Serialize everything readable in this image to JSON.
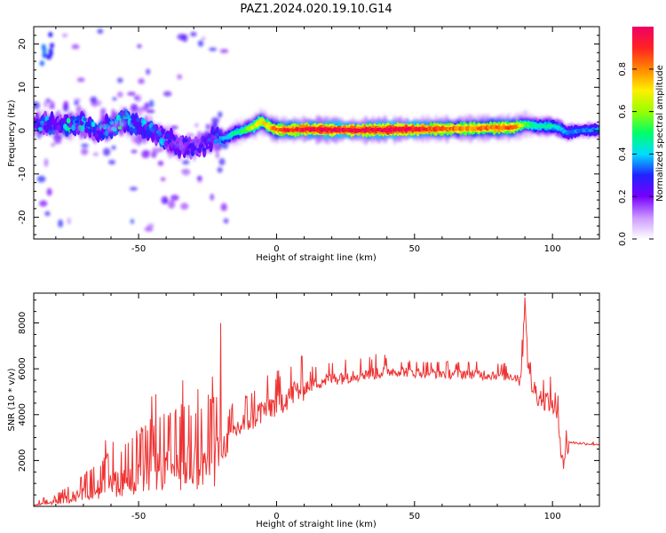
{
  "title": "PAZ1.2024.020.19.10.G14",
  "chart_data": [
    {
      "type": "heatmap",
      "xlabel": "Height of straight line (km)",
      "ylabel": "Frequency (Hz)",
      "xlim": [
        -88,
        117
      ],
      "ylim": [
        -25,
        24
      ],
      "xticks": [
        -50,
        0,
        50,
        100
      ],
      "yticks": [
        -20,
        -10,
        0,
        10,
        20
      ],
      "grid": false,
      "colorbar": {
        "label": "Normalized spectral amplitude",
        "range": [
          0,
          1
        ],
        "ticks": [
          0.0,
          0.2,
          0.4,
          0.6,
          0.8
        ],
        "colors": [
          "#ffffff",
          "#cc99ff",
          "#7700ff",
          "#2222ff",
          "#00ddff",
          "#00ff66",
          "#99ff00",
          "#ffee00",
          "#ff8800",
          "#ff2222",
          "#ee0066"
        ]
      },
      "ridge": {
        "x": [
          -88,
          -80,
          -75,
          -70,
          -65,
          -60,
          -55,
          -50,
          -45,
          -40,
          -35,
          -30,
          -25,
          -22,
          -20,
          -18,
          -15,
          -12,
          -10,
          -8,
          -6,
          -5,
          -3,
          0,
          5,
          10,
          20,
          30,
          40,
          50,
          60,
          70,
          80,
          85,
          88,
          90,
          95,
          100,
          103,
          105,
          110,
          117
        ],
        "y": [
          1.5,
          1.5,
          1.0,
          1.5,
          0.0,
          1.0,
          2.5,
          1.0,
          0.0,
          -2.0,
          -3.5,
          -4.0,
          -3.0,
          -1.5,
          -2.0,
          -1.5,
          -0.5,
          0.0,
          0.5,
          1.0,
          2.0,
          2.0,
          1.0,
          0.2,
          0.2,
          0.3,
          0.2,
          0.1,
          0.2,
          0.3,
          0.4,
          0.5,
          0.7,
          0.7,
          1.0,
          1.5,
          1.0,
          1.0,
          0.5,
          -0.5,
          0.0,
          0.2
        ],
        "amplitude": [
          0.3,
          0.3,
          0.35,
          0.35,
          0.3,
          0.35,
          0.4,
          0.35,
          0.3,
          0.3,
          0.25,
          0.25,
          0.25,
          0.3,
          0.35,
          0.4,
          0.45,
          0.5,
          0.6,
          0.65,
          0.7,
          0.7,
          0.7,
          0.85,
          0.9,
          0.95,
          1.0,
          0.95,
          1.0,
          0.95,
          0.85,
          0.8,
          0.85,
          0.85,
          0.75,
          0.55,
          0.45,
          0.45,
          0.4,
          0.35,
          0.35,
          0.35
        ]
      }
    },
    {
      "type": "line",
      "xlabel": "Height of straight line (km)",
      "ylabel": "SNR (10 * v/v)",
      "xlim": [
        -88,
        117
      ],
      "ylim": [
        0,
        9300
      ],
      "xticks": [
        -50,
        0,
        50,
        100
      ],
      "yticks": [
        2000,
        4000,
        6000,
        8000
      ],
      "grid": false,
      "color": "#ee3333",
      "x": [
        -88,
        -85,
        -80,
        -75,
        -70,
        -65,
        -60,
        -55,
        -50,
        -45,
        -40,
        -35,
        -30,
        -25,
        -22,
        -20,
        -18,
        -15,
        -12,
        -10,
        -5,
        0,
        5,
        10,
        15,
        20,
        25,
        30,
        35,
        40,
        45,
        50,
        55,
        60,
        65,
        70,
        75,
        80,
        85,
        88,
        89,
        90,
        91,
        92,
        95,
        100,
        102,
        103,
        104,
        105,
        106,
        110,
        117
      ],
      "y": [
        50,
        100,
        200,
        400,
        600,
        800,
        1000,
        1200,
        1400,
        1600,
        1700,
        1800,
        1900,
        2000,
        2200,
        2500,
        2800,
        3300,
        3600,
        3800,
        4200,
        4500,
        4900,
        5200,
        5450,
        5600,
        5700,
        5800,
        5850,
        5900,
        5900,
        5850,
        5850,
        5800,
        5800,
        5800,
        5750,
        5750,
        5700,
        5600,
        6200,
        9300,
        6500,
        5400,
        4800,
        4500,
        3800,
        2700,
        2000,
        2500,
        2800,
        2750,
        2700
      ]
    }
  ]
}
